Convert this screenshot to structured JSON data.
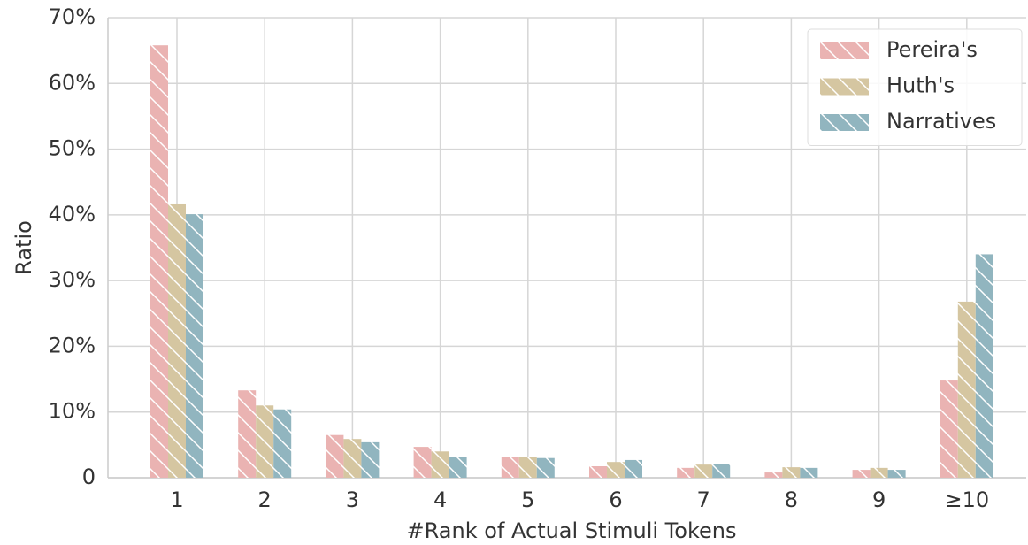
{
  "chart_data": {
    "type": "bar",
    "xlabel": "#Rank of Actual Stimuli Tokens",
    "ylabel": "Ratio",
    "categories": [
      "1",
      "2",
      "3",
      "4",
      "5",
      "6",
      "7",
      "8",
      "9",
      "≥10"
    ],
    "series": [
      {
        "name": "Pereira's",
        "color": "#eab3b2",
        "values": [
          65.8,
          13.3,
          6.5,
          4.7,
          3.1,
          1.75,
          1.5,
          0.8,
          1.2,
          14.8
        ]
      },
      {
        "name": "Huth's",
        "color": "#d5c6a1",
        "values": [
          41.6,
          11.0,
          5.9,
          4.0,
          3.1,
          2.4,
          2.0,
          1.6,
          1.5,
          26.8
        ]
      },
      {
        "name": "Narratives",
        "color": "#91b5bf",
        "values": [
          40.1,
          10.4,
          5.4,
          3.2,
          3.0,
          2.7,
          2.1,
          1.5,
          1.2,
          34.0
        ]
      }
    ],
    "ylim": [
      0,
      70
    ],
    "yticks": [
      0,
      {
        "value": 10,
        "label": "10%"
      },
      {
        "value": 20,
        "label": "20%"
      },
      {
        "value": 30,
        "label": "30%"
      },
      {
        "value": 40,
        "label": "40%"
      },
      {
        "value": 50,
        "label": "50%"
      },
      {
        "value": 60,
        "label": "60%"
      },
      {
        "value": 70,
        "label": "70%"
      }
    ],
    "grid": true,
    "legend": "upper right",
    "hatch": true
  }
}
